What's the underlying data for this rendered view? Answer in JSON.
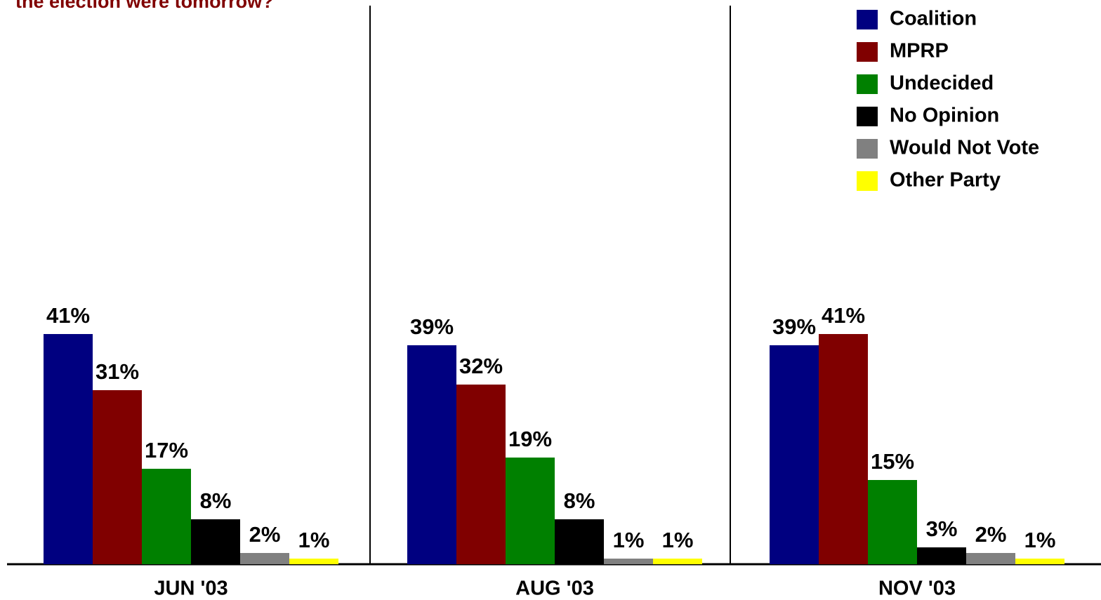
{
  "chart_data": {
    "type": "bar",
    "title": "the election were tomorrow?",
    "categories": [
      "JUN '03",
      "AUG '03",
      "NOV '03"
    ],
    "ylim": [
      0,
      100
    ],
    "series": [
      {
        "name": "Coalition",
        "color": "#000080",
        "values": [
          41,
          39,
          39
        ],
        "value_labels": [
          "41%",
          "39%",
          "39%"
        ]
      },
      {
        "name": "MPRP",
        "color": "#800000",
        "values": [
          31,
          32,
          41
        ],
        "value_labels": [
          "31%",
          "32%",
          "41%"
        ]
      },
      {
        "name": "Undecided",
        "color": "#008000",
        "values": [
          17,
          19,
          15
        ],
        "value_labels": [
          "17%",
          "19%",
          "15%"
        ]
      },
      {
        "name": "No Opinion",
        "color": "#000000",
        "values": [
          8,
          8,
          3
        ],
        "value_labels": [
          "8%",
          "8%",
          "3%"
        ]
      },
      {
        "name": "Would Not Vote",
        "color": "#808080",
        "values": [
          2,
          1,
          2
        ],
        "value_labels": [
          "2%",
          "1%",
          "2%"
        ]
      },
      {
        "name": "Other Party",
        "color": "#ffff00",
        "values": [
          1,
          1,
          1
        ],
        "value_labels": [
          "1%",
          "1%",
          "1%"
        ]
      }
    ]
  }
}
